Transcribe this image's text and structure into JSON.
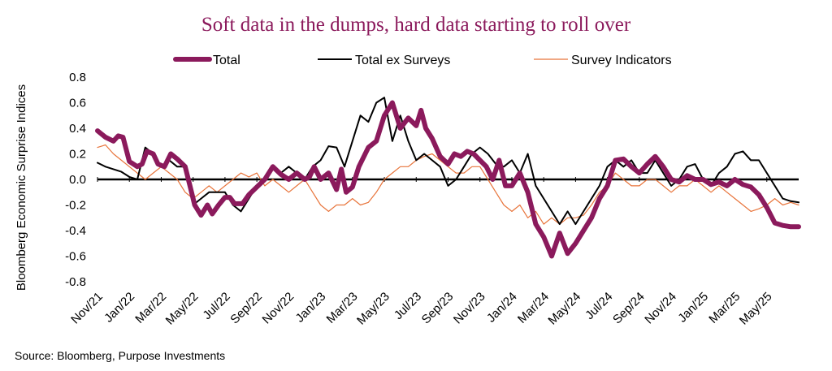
{
  "chart_data": {
    "type": "line",
    "title": "Soft data in the dumps, hard data starting to roll over",
    "ylabel": "Bloomberg Economic Surprise Indices",
    "xlabel": "",
    "ylim": [
      -0.8,
      0.8
    ],
    "yticks": [
      "0.8",
      "0.6",
      "0.4",
      "0.2",
      "0.0",
      "-0.2",
      "-0.4",
      "-0.6",
      "-0.8"
    ],
    "ytick_values": [
      0.8,
      0.6,
      0.4,
      0.2,
      0.0,
      -0.2,
      -0.4,
      -0.6,
      -0.8
    ],
    "xticks": [
      "Nov/21",
      "Jan/22",
      "Mar/22",
      "May/22",
      "Jul/22",
      "Sep/22",
      "Nov/22",
      "Jan/23",
      "Mar/23",
      "May/23",
      "Jul/23",
      "Sep/23",
      "Nov/23",
      "Jan/24",
      "Mar/24",
      "May/24",
      "Jul/24",
      "Sep/24",
      "Nov/24",
      "Jan/25",
      "Mar/25",
      "May/25"
    ],
    "xrange_months": [
      0,
      44
    ],
    "source": "Source: Bloomberg, Purpose Investments",
    "series": [
      {
        "name": "Total",
        "color": "#8b1a5c",
        "x": [
          0,
          0.5,
          1,
          1.3,
          1.6,
          2,
          2.5,
          2.8,
          3.1,
          3.5,
          3.8,
          4.2,
          4.6,
          5,
          5.5,
          5.8,
          6.1,
          6.5,
          6.9,
          7.2,
          7.6,
          8,
          8.3,
          8.6,
          9.1,
          9.5,
          10,
          10.5,
          11,
          11.5,
          12,
          12.5,
          13,
          13.3,
          13.6,
          14,
          14.5,
          15,
          15.3,
          15.6,
          16,
          16.4,
          17,
          17.5,
          18,
          18.5,
          19,
          19.5,
          20,
          20.3,
          20.6,
          21,
          21.5,
          22,
          22.4,
          22.8,
          23.2,
          23.6,
          24,
          24.4,
          24.8,
          25.2,
          25.6,
          26,
          26.5,
          27,
          27.5,
          28,
          28.5,
          29,
          29.5,
          30,
          30.5,
          31,
          31.5,
          32,
          32.5,
          33,
          33.5,
          34,
          34.5,
          35,
          35.5,
          36,
          36.5,
          37,
          37.5,
          38,
          38.5,
          39,
          39.5,
          40,
          40.5,
          41,
          41.5,
          42,
          42.5,
          43,
          43.5,
          44
        ],
        "values": [
          0.38,
          0.33,
          0.3,
          0.34,
          0.33,
          0.14,
          0.1,
          0.12,
          0.22,
          0.2,
          0.12,
          0.1,
          0.2,
          0.16,
          0.1,
          -0.05,
          -0.2,
          -0.28,
          -0.2,
          -0.27,
          -0.2,
          -0.14,
          -0.14,
          -0.19,
          -0.19,
          -0.12,
          -0.06,
          0.0,
          0.1,
          0.04,
          0.0,
          0.05,
          0.0,
          0.02,
          0.1,
          0.0,
          0.05,
          -0.08,
          0.08,
          -0.1,
          -0.06,
          0.1,
          0.25,
          0.3,
          0.5,
          0.6,
          0.4,
          0.48,
          0.42,
          0.54,
          0.4,
          0.32,
          0.18,
          0.12,
          0.2,
          0.18,
          0.22,
          0.2,
          0.15,
          0.1,
          0.0,
          0.15,
          -0.05,
          -0.05,
          0.05,
          -0.1,
          -0.35,
          -0.45,
          -0.6,
          -0.42,
          -0.58,
          -0.5,
          -0.4,
          -0.3,
          -0.15,
          -0.05,
          0.15,
          0.16,
          0.1,
          0.05,
          0.12,
          0.18,
          0.1,
          0.0,
          -0.02,
          0.03,
          0.0,
          0.0,
          -0.04,
          -0.02,
          -0.05,
          0.0,
          -0.04,
          -0.06,
          -0.12,
          -0.22,
          -0.34,
          -0.36,
          -0.37,
          -0.37
        ]
      },
      {
        "name": "Total ex Surveys",
        "color": "#000000",
        "x": [
          0,
          0.5,
          1,
          1.5,
          2,
          2.5,
          3,
          3.5,
          4,
          4.5,
          5,
          5.5,
          6,
          6.5,
          7,
          7.5,
          8,
          8.5,
          9,
          9.5,
          10,
          10.5,
          11,
          11.5,
          12,
          12.5,
          13,
          13.5,
          14,
          14.5,
          15,
          15.5,
          16,
          16.5,
          17,
          17.5,
          18,
          18.5,
          19,
          19.5,
          20,
          20.5,
          21,
          21.5,
          22,
          22.5,
          23,
          23.5,
          24,
          24.5,
          25,
          25.5,
          26,
          26.5,
          27,
          27.5,
          28,
          28.5,
          29,
          29.5,
          30,
          30.5,
          31,
          31.5,
          32,
          32.5,
          33,
          33.5,
          34,
          34.5,
          35,
          35.5,
          36,
          36.5,
          37,
          37.5,
          38,
          38.5,
          39,
          39.5,
          40,
          40.5,
          41,
          41.5,
          42,
          42.5,
          43,
          43.5,
          44
        ],
        "values": [
          0.13,
          0.1,
          0.08,
          0.06,
          0.02,
          0.0,
          0.25,
          0.2,
          0.1,
          0.15,
          0.1,
          0.1,
          -0.2,
          -0.15,
          -0.1,
          -0.1,
          -0.1,
          -0.2,
          -0.25,
          -0.15,
          -0.05,
          0.0,
          0.1,
          0.05,
          0.1,
          0.05,
          0.0,
          0.1,
          0.15,
          0.26,
          0.25,
          0.1,
          0.3,
          0.5,
          0.45,
          0.6,
          0.64,
          0.3,
          0.5,
          0.3,
          0.15,
          0.2,
          0.15,
          0.1,
          -0.05,
          0.0,
          0.1,
          0.2,
          0.25,
          0.2,
          0.12,
          0.1,
          0.15,
          0.05,
          0.2,
          -0.05,
          -0.15,
          -0.25,
          -0.35,
          -0.25,
          -0.35,
          -0.25,
          -0.15,
          -0.05,
          0.1,
          0.15,
          0.1,
          0.15,
          0.05,
          0.05,
          0.15,
          0.05,
          -0.05,
          0.0,
          0.1,
          0.12,
          0.0,
          -0.05,
          0.05,
          0.1,
          0.2,
          0.22,
          0.15,
          0.15,
          0.05,
          -0.05,
          -0.15,
          -0.17,
          -0.18
        ]
      },
      {
        "name": "Survey Indicators",
        "color": "#e8743b",
        "x": [
          0,
          0.5,
          1,
          1.5,
          2,
          2.5,
          3,
          3.5,
          4,
          4.5,
          5,
          5.5,
          6,
          6.5,
          7,
          7.5,
          8,
          8.5,
          9,
          9.5,
          10,
          10.5,
          11,
          11.5,
          12,
          12.5,
          13,
          13.5,
          14,
          14.5,
          15,
          15.5,
          16,
          16.5,
          17,
          17.5,
          18,
          18.5,
          19,
          19.5,
          20,
          20.5,
          21,
          21.5,
          22,
          22.5,
          23,
          23.5,
          24,
          24.5,
          25,
          25.5,
          26,
          26.5,
          27,
          27.5,
          28,
          28.5,
          29,
          29.5,
          30,
          30.5,
          31,
          31.5,
          32,
          32.5,
          33,
          33.5,
          34,
          34.5,
          35,
          35.5,
          36,
          36.5,
          37,
          37.5,
          38,
          38.5,
          39,
          39.5,
          40,
          40.5,
          41,
          41.5,
          42,
          42.5,
          43,
          43.5,
          44
        ],
        "values": [
          0.25,
          0.27,
          0.2,
          0.15,
          0.1,
          0.05,
          0.0,
          0.05,
          0.1,
          0.05,
          0.0,
          -0.1,
          -0.15,
          -0.1,
          -0.05,
          -0.1,
          -0.05,
          0.0,
          0.05,
          0.02,
          0.05,
          -0.05,
          0.0,
          -0.05,
          -0.1,
          -0.05,
          0.0,
          -0.1,
          -0.2,
          -0.25,
          -0.2,
          -0.2,
          -0.15,
          -0.2,
          -0.18,
          -0.1,
          0.0,
          0.05,
          0.1,
          0.1,
          0.15,
          0.18,
          0.2,
          0.15,
          0.1,
          0.05,
          0.05,
          0.1,
          0.1,
          0.0,
          -0.1,
          -0.2,
          -0.25,
          -0.2,
          -0.3,
          -0.25,
          -0.35,
          -0.3,
          -0.35,
          -0.3,
          -0.3,
          -0.28,
          -0.2,
          -0.1,
          -0.05,
          0.05,
          0.0,
          -0.05,
          -0.05,
          0.0,
          0.0,
          -0.05,
          -0.1,
          -0.05,
          -0.05,
          0.0,
          -0.05,
          -0.1,
          -0.05,
          -0.1,
          -0.15,
          -0.2,
          -0.25,
          -0.23,
          -0.2,
          -0.15,
          -0.2,
          -0.18,
          -0.2
        ]
      }
    ]
  }
}
